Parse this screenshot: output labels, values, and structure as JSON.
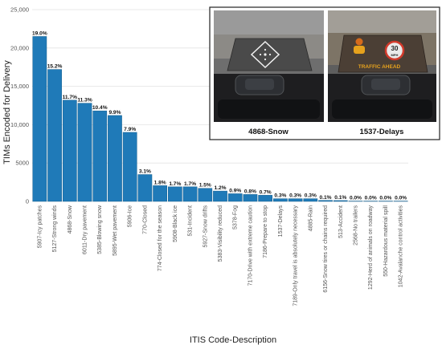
{
  "chart_data": {
    "type": "bar",
    "xlabel": "ITIS Code-Description",
    "ylabel": "TIMs Encoded for Delivery",
    "ylim": [
      0,
      25000
    ],
    "y_ticks": [
      {
        "value": 0,
        "label": "0"
      },
      {
        "value": 5000,
        "label": "5000"
      },
      {
        "value": 10000,
        "label": "10,000"
      },
      {
        "value": 15000,
        "label": "15,000"
      },
      {
        "value": 20000,
        "label": "20,000"
      },
      {
        "value": 25000,
        "label": "25,000"
      }
    ],
    "grid": true,
    "bar_color": "#1f7ab8",
    "categories": [
      "5907-Icy patches",
      "5127-Strong winds",
      "4868-Snow",
      "6011-Dry pavement",
      "5385-Blowing snow",
      "5895-Wet pavement",
      "5906-Ice",
      "770-Closed",
      "774-Closed for the season",
      "5908-Black ice",
      "531-Incident",
      "5927-Snow drifts",
      "5383-Visibility reduced",
      "5378-Fog",
      "7170-Drive with extreme caution",
      "7186-Prepare to stop",
      "1537-Delays",
      "7189-Only travel is absolutely necessary",
      "4885-Rain",
      "6156-Snow tires or chains required",
      "513-Accident",
      "2568-No trailers",
      "1292-Herd of animals on roadway",
      "550-Hazardous material spill",
      "1042-Avalanche control activities"
    ],
    "values": [
      21500,
      17200,
      13200,
      12800,
      11800,
      11200,
      9000,
      3500,
      2050,
      1900,
      1900,
      1700,
      1350,
      1000,
      900,
      800,
      350,
      350,
      350,
      130,
      110,
      30,
      20,
      20,
      10
    ],
    "labels": [
      "19.0%",
      "15.2%",
      "11.7%",
      "11.3%",
      "10.4%",
      "9.9%",
      "7.9%",
      "3.1%",
      "1.8%",
      "1.7%",
      "1.7%",
      "1.5%",
      "1.2%",
      "0.9%",
      "0.8%",
      "0.7%",
      "0.3%",
      "0.3%",
      "0.3%",
      "0.1%",
      "0.1%",
      "0.0%",
      "0.0%",
      "0.0%",
      "0.0%"
    ]
  },
  "inset": {
    "photos": [
      {
        "caption": "4868-Snow"
      },
      {
        "caption": "1537-Delays",
        "sign_speed": "30",
        "sign_unit": "MPH",
        "sign_text": "TRAFFIC AHEAD"
      }
    ]
  }
}
